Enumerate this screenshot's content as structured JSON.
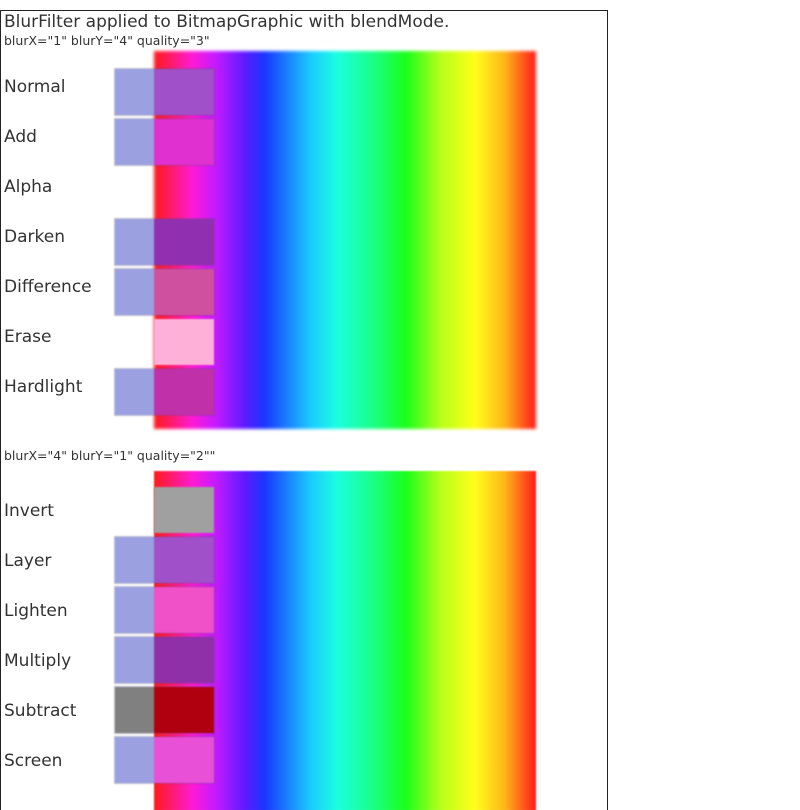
{
  "header": {
    "title": "BlurFilter applied to BitmapGraphic with blendMode.",
    "section1_caption": "blurX=\"1\" blurY=\"4\" quality=\"3\"",
    "section2_caption": "blurX=\"4\" blurY=\"1\" quality=\"2\"\""
  },
  "section1": {
    "rows": [
      {
        "label": "Normal",
        "left_color": "#9aa0e0",
        "right_color": "#a050c8"
      },
      {
        "label": "Add",
        "left_color": "#9aa0e0",
        "right_color": "#e030d0"
      },
      {
        "label": "Alpha",
        "left_color": "",
        "right_color": ""
      },
      {
        "label": "Darken",
        "left_color": "#9aa0e0",
        "right_color": "#9030b0"
      },
      {
        "label": "Difference",
        "left_color": "#9aa0e0",
        "right_color": "#d050a0"
      },
      {
        "label": "Erase",
        "left_color": "",
        "right_color": "#ffb0d8"
      },
      {
        "label": "Hardlight",
        "left_color": "#9aa0e0",
        "right_color": "#c030a8"
      }
    ]
  },
  "section2": {
    "rows": [
      {
        "label": "Invert",
        "left_color": "",
        "right_color": "#a0a0a0"
      },
      {
        "label": "Layer",
        "left_color": "#9aa0e0",
        "right_color": "#a050c8"
      },
      {
        "label": "Lighten",
        "left_color": "#9aa0e0",
        "right_color": "#f050c8"
      },
      {
        "label": "Multiply",
        "left_color": "#9aa0e0",
        "right_color": "#9030a8"
      },
      {
        "label": "Subtract",
        "left_color": "#808080",
        "right_color": "#b00010"
      },
      {
        "label": "Screen",
        "left_color": "#9aa0e0",
        "right_color": "#e850d8"
      }
    ]
  },
  "colors": {
    "text": "#333333",
    "frame_border": "#222222",
    "sample_base": "#9aa0e0"
  }
}
